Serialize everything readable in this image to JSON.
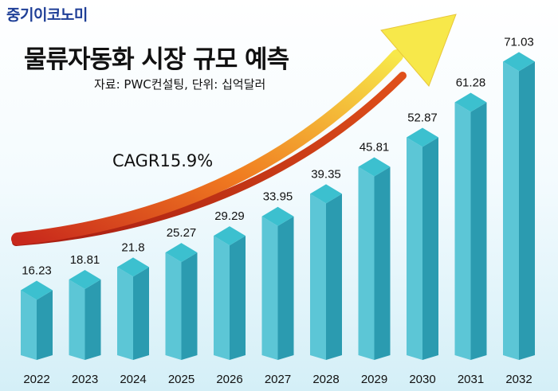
{
  "brand": "중기이코노미",
  "cagr_label": "CAGR15.9%",
  "colors": {
    "brand": "#1f3f97",
    "bar_front": "#5cc6d6",
    "bar_side": "#2b9bb0",
    "bar_top": "#3cc0cf",
    "arrow_start": "#c8281c",
    "arrow_end": "#f7e84a"
  },
  "chart_data": {
    "type": "bar",
    "title": "물류자동화 시장 규모 예측",
    "subtitle": "자료: PWC컨설팅, 단위: 십억달러",
    "categories": [
      "2022",
      "2023",
      "2024",
      "2025",
      "2026",
      "2027",
      "2028",
      "2029",
      "2030",
      "2031",
      "2032"
    ],
    "values": [
      16.23,
      18.81,
      21.8,
      25.27,
      29.29,
      33.95,
      39.35,
      45.81,
      52.87,
      61.28,
      71.03
    ],
    "value_labels": [
      "16.23",
      "18.81",
      "21.8",
      "25.27",
      "29.29",
      "33.95",
      "39.35",
      "45.81",
      "52.87",
      "61.28",
      "71.03"
    ],
    "legend": "none",
    "grid": false
  }
}
